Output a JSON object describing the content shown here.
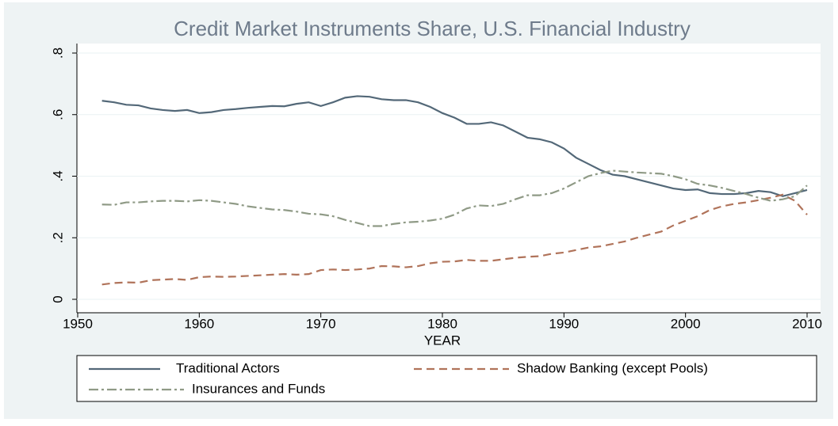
{
  "chart_data": {
    "type": "line",
    "title": "Credit Market Instruments Share, U.S. Financial Industry",
    "x_label": "YEAR",
    "x": [
      1952,
      1953,
      1954,
      1955,
      1956,
      1957,
      1958,
      1959,
      1960,
      1961,
      1962,
      1963,
      1964,
      1965,
      1966,
      1967,
      1968,
      1969,
      1970,
      1971,
      1972,
      1973,
      1974,
      1975,
      1976,
      1977,
      1978,
      1979,
      1980,
      1981,
      1982,
      1983,
      1984,
      1985,
      1986,
      1987,
      1988,
      1989,
      1990,
      1991,
      1992,
      1993,
      1994,
      1995,
      1996,
      1997,
      1998,
      1999,
      2000,
      2001,
      2002,
      2003,
      2004,
      2005,
      2006,
      2007,
      2008,
      2009,
      2010
    ],
    "series": [
      {
        "name": "Traditional Actors",
        "color": "#536878",
        "dash": "solid",
        "values": [
          0.645,
          0.64,
          0.632,
          0.63,
          0.62,
          0.615,
          0.612,
          0.615,
          0.605,
          0.608,
          0.615,
          0.618,
          0.622,
          0.625,
          0.628,
          0.627,
          0.635,
          0.64,
          0.628,
          0.64,
          0.655,
          0.66,
          0.658,
          0.65,
          0.647,
          0.647,
          0.64,
          0.625,
          0.605,
          0.59,
          0.57,
          0.57,
          0.575,
          0.565,
          0.545,
          0.525,
          0.52,
          0.51,
          0.49,
          0.46,
          0.44,
          0.42,
          0.405,
          0.4,
          0.39,
          0.38,
          0.37,
          0.36,
          0.355,
          0.357,
          0.345,
          0.342,
          0.342,
          0.345,
          0.352,
          0.348,
          0.335,
          0.345,
          0.355
        ]
      },
      {
        "name": "Shadow Banking (except Pools)",
        "color": "#b0735a",
        "dash": "dash",
        "values": [
          0.048,
          0.053,
          0.055,
          0.054,
          0.062,
          0.064,
          0.066,
          0.063,
          0.072,
          0.074,
          0.073,
          0.074,
          0.076,
          0.078,
          0.08,
          0.082,
          0.08,
          0.082,
          0.095,
          0.097,
          0.095,
          0.097,
          0.1,
          0.108,
          0.107,
          0.104,
          0.108,
          0.117,
          0.122,
          0.123,
          0.128,
          0.125,
          0.125,
          0.13,
          0.135,
          0.138,
          0.14,
          0.148,
          0.152,
          0.16,
          0.168,
          0.172,
          0.18,
          0.188,
          0.2,
          0.21,
          0.22,
          0.24,
          0.255,
          0.27,
          0.29,
          0.302,
          0.31,
          0.315,
          0.322,
          0.33,
          0.34,
          0.32,
          0.275
        ]
      },
      {
        "name": "Insurances and Funds",
        "color": "#8f9a86",
        "dash": "dashdot",
        "values": [
          0.308,
          0.307,
          0.315,
          0.315,
          0.318,
          0.32,
          0.32,
          0.318,
          0.322,
          0.32,
          0.315,
          0.31,
          0.302,
          0.297,
          0.292,
          0.29,
          0.285,
          0.278,
          0.276,
          0.27,
          0.258,
          0.248,
          0.238,
          0.238,
          0.245,
          0.25,
          0.252,
          0.256,
          0.262,
          0.275,
          0.295,
          0.305,
          0.303,
          0.31,
          0.325,
          0.338,
          0.338,
          0.345,
          0.36,
          0.38,
          0.4,
          0.41,
          0.418,
          0.415,
          0.412,
          0.41,
          0.408,
          0.4,
          0.39,
          0.375,
          0.37,
          0.362,
          0.352,
          0.342,
          0.33,
          0.32,
          0.325,
          0.335,
          0.37
        ]
      }
    ],
    "xlim": [
      1950,
      2010
    ],
    "xticks": [
      1950,
      1960,
      1970,
      1980,
      1990,
      2000,
      2010
    ],
    "ylim": [
      0,
      0.8
    ],
    "yticks": [
      0,
      {
        "value": 0.2,
        "label": ".2"
      },
      {
        "value": 0.4,
        "label": ".4"
      },
      {
        "value": 0.6,
        "label": ".6"
      },
      {
        "value": 0.8,
        "label": ".8"
      }
    ],
    "grid": true
  }
}
